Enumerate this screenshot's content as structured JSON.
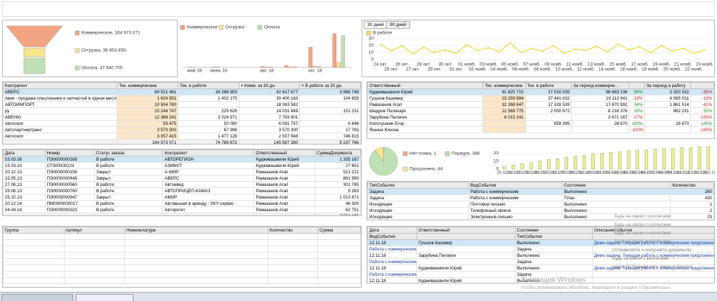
{
  "funnel": {
    "items": [
      {
        "label": "Коммерческое, 164 973 071",
        "color": "#f2a582"
      },
      {
        "label": "Отгрузка, 36 853 455",
        "color": "#f8e58c"
      },
      {
        "label": "Оплата, 37 940 700",
        "color": "#bfe0b4"
      }
    ]
  },
  "sales_chart": {
    "type": "bar",
    "categories": [
      "май 18",
      "июнь 18",
      null,
      "авг. 18",
      null,
      "окт. 18",
      null
    ],
    "series": [
      {
        "name": "Коммерческое",
        "color": "#f2a582",
        "values": [
          0.4,
          0.5,
          0,
          1.5,
          3,
          33,
          55
        ]
      },
      {
        "name": "Отгрузка",
        "color": "#f8e58c",
        "values": [
          0,
          0.3,
          0,
          1,
          1,
          2,
          8
        ]
      },
      {
        "name": "Оплата",
        "color": "#bfe0b4",
        "values": [
          0,
          0,
          0,
          0.5,
          1,
          2,
          52
        ]
      }
    ]
  },
  "activity_chart": {
    "type": "line",
    "tabs": [
      "30 дней",
      "90 дней"
    ],
    "categories": [
      "24 окт.",
      "25 окт.",
      "26 окт.",
      "27 окт.",
      "28 окт.",
      "29 окт.",
      "30 окт.",
      "31 окт.",
      "01 нояб.",
      "02 нояб.",
      "03 нояб.",
      "04 нояб.",
      "05 нояб.",
      "06 нояб.",
      "07 нояб.",
      "08 нояб.",
      "09 нояб.",
      "10 нояб.",
      "11 нояб.",
      "12 нояб.",
      "13 нояб.",
      "14 нояб.",
      "15 нояб.",
      "16 нояб.",
      "17 нояб.",
      "18 нояб.",
      "19 нояб.",
      "20 нояб.",
      "21 нояб.",
      "22 нояб.",
      "23 нояб."
    ],
    "series": [
      {
        "name": "В работе",
        "color": "#f3dc5a",
        "values": [
          22,
          12,
          20,
          8,
          18,
          10,
          14,
          9,
          21,
          13,
          17,
          11,
          24,
          10,
          16,
          12,
          20,
          9,
          15,
          13,
          19,
          11,
          22,
          14,
          18,
          10,
          20,
          12,
          16,
          9,
          14
        ]
      }
    ],
    "ylim": [
      0,
      30
    ],
    "yticks": [
      0,
      10,
      20,
      30
    ]
  },
  "counterparties": {
    "columns": [
      "Контрагент",
      "Тек. коммерческие",
      "Тек. в работе",
      "+ Комм. за 30 дн.",
      "+ В работе за 30 дн."
    ],
    "rows": [
      [
        "АВЕРС",
        "69 521 481",
        "34 288 953",
        "42 617 677",
        "3 986 748"
      ],
      [
        "Авик - продажа спецтехники и запчастей в одном месте",
        "1 624 931",
        "1 402 175",
        "30 400 163",
        "104 658"
      ],
      [
        "АВТОИМПОРТ",
        "10 504 780",
        null,
        "18 063 582",
        null
      ],
      [
        "ру",
        "15 244 747",
        "229 626",
        "14 031 849",
        "151 231"
      ],
      [
        "АВЕНЮ",
        "12 366 241",
        "3 024 971",
        "7 793 801",
        null
      ],
      [
        "Автоскоп",
        "55 475",
        "50 090",
        "6 091 757",
        "6 646"
      ],
      [
        "Автопартнертранс",
        "3 570 300",
        "67 998",
        "3 570 300",
        "17 783"
      ],
      [
        "Автоскоп",
        "3 057 415",
        "1 477 128",
        "2 557 948",
        "746 815"
      ]
    ],
    "totals": [
      null,
      "164 973 071",
      "74 789 672",
      "145 587 380",
      "9 237 766"
    ]
  },
  "responsible": {
    "columns": [
      "Ответственный",
      "Тек. коммерческие",
      "Тек. в работе",
      "За период коммерче...",
      null,
      "За период в работу",
      null
    ],
    "rows": [
      [
        "Кудживашвили Юрий",
        "91 825 715",
        "17 010 035",
        "96 683 236",
        "94%",
        "2 320 322",
        "-35%"
      ],
      [
        "Гуськов Казимир",
        "23 293 694",
        "37 441 032",
        "19 113 941",
        "-19%",
        "4 065 031",
        "-13%"
      ],
      [
        "Рамазанов Агап",
        "32 268 647",
        "17 328 539",
        "17 870 992",
        "34%",
        "1 861 514",
        "-41%"
      ],
      [
        "Шедров Поликарп",
        "11 569 775",
        "2 050 672",
        "8 216 376",
        "55%",
        "962 231",
        "53%"
      ],
      [
        "Зарубина Пелагея",
        "6 015 241",
        null,
        "3 671 167",
        "-17%",
        null,
        "-100%"
      ],
      [
        "Колотушкин Егор",
        null,
        "959 395",
        "28 670",
        "100%",
        "28 670",
        "100%"
      ],
      [
        "Яшина Юнона",
        null,
        null,
        null,
        "-100%",
        null,
        "-100%"
      ]
    ]
  },
  "orders": {
    "columns": [
      "Дата",
      "Номер",
      "Статус заказа",
      "Контрагент",
      "Ответственный",
      "СуммаДокумента"
    ],
    "rows": [
      [
        "03.03.08",
        "ПЭ0000000168",
        "В работе",
        "АВТОРЕГИОН",
        "Кудживашвили Юрий",
        "1 335 167"
      ],
      [
        "15.03.10",
        "СТ000000223",
        "В работе",
        "АЗИМУТ",
        "Кудживашвили Юрий",
        "27 651"
      ],
      [
        "20.12.13",
        "ПЭ0000000158",
        "Закрыт",
        "А-МИР",
        "Рамазанов Агап",
        "521 221"
      ],
      [
        "22.05.13",
        "ПЭ0000000445",
        "Закрыт",
        "АВЕРС",
        "Рамазанов Агап",
        "861 990"
      ],
      [
        "27.06.13",
        "ПЭ0000000560",
        "В работе",
        "Автоевед",
        "Рамазанов Агап",
        "301 785"
      ],
      [
        "29.08.13",
        "ПЭ0000000760",
        "В работе",
        "АВТОПРИЦЕП-КАМАЗ",
        "Рамазанов Агап",
        "9 393"
      ],
      [
        "25.10.13",
        "ПЭ0000000947",
        "Закрыт",
        "АМИР",
        "Рамазанов Агап",
        "1 013 871"
      ],
      [
        "20.12.14",
        "ПМ0000000017",
        "В работе",
        "Автовышки в аренду - SKY-сервис",
        "Рамазанов Агап",
        "48 300"
      ],
      [
        "04.04.14",
        "ПЭ0000000323",
        "В работе",
        "Авторитет",
        "Рамазанов Агап",
        "62 751"
      ]
    ],
    "totals": [
      null,
      null,
      null,
      null,
      null,
      "7 556 195"
    ]
  },
  "status_pie": {
    "type": "pie",
    "series": [
      {
        "name": "Нет плана, 1",
        "color": "#f2a582",
        "value": 1
      },
      {
        "name": "Порядок, 386",
        "color": "#bfe0b4",
        "value": 386
      },
      {
        "name": "Просрочено, 44",
        "color": "#f8e58c",
        "value": 44
      }
    ]
  },
  "deadline_chart": {
    "type": "bar",
    "color": "#eef0a0",
    "categories": [
      "20.11.18",
      "21.11.18",
      "22.11.18",
      "23.11.18",
      "24.11.18",
      "25.11.18",
      "26.11.18",
      "27.11.18",
      "28.11.18",
      "29.11.18",
      "30.11.18",
      "01.12.18",
      "02.12.18",
      "03.12.18",
      "04.12.18",
      "05.12.18",
      "06.12.18",
      "07.12.18",
      "08.12.18",
      "09.12.18",
      "10.12.18",
      "11.12.18",
      "12.12.18",
      "13.12.18"
    ],
    "values": [
      3,
      5,
      7,
      8,
      10,
      12,
      13,
      15,
      16,
      17,
      19,
      20,
      21,
      22,
      23,
      24,
      24,
      25,
      26,
      26,
      27,
      27,
      28,
      28
    ],
    "ylim": [
      0,
      30
    ],
    "yticks": [
      0,
      10,
      20
    ]
  },
  "event_types": {
    "columns": [
      "ТипСобытия",
      "ВидСобытия",
      "Состояние",
      "Количество"
    ],
    "rows": [
      [
        "Задача",
        "Работа с коммерческим",
        "Выполнено",
        "260"
      ],
      [
        "Задача",
        "Работа с коммерческим",
        "План",
        "430"
      ],
      [
        "Исходящее",
        "Почтовое письмо",
        "Выполнено",
        "1"
      ],
      [
        "Исходящее",
        "Телефонный звонок",
        "Выполнено",
        "2"
      ],
      [
        "Исходящее",
        "Электронное письмо",
        "Выполнено",
        "23"
      ]
    ]
  },
  "goods": {
    "columns": [
      "Группа",
      "Артикул",
      "Номенклатура",
      "Количество",
      "Сумма"
    ]
  },
  "events": {
    "columns": [
      "Дата",
      "Ответственный",
      "Состояние",
      "ОписаниеСобытия"
    ],
    "subcolumns": [
      "ВидСобытия",
      "ТипСобытия"
    ],
    "rows": [
      [
        "12.11.18",
        "Гуськов Казимир",
        "Выполнено",
        "Демо-задача. Текущая работа с коммерческим предложением",
        "Работа с коммерческим",
        "Задача"
      ],
      [
        "12.11.18",
        "Зарубина Пелагея",
        "Выполнено",
        "Демо-задача. Текущая работа с коммерческим предложением",
        "Работа с коммерческим",
        "Задача"
      ],
      [
        "12.11.18",
        "Кудживашвили Юрий",
        "Выполнено",
        "Демо-задача. Текущая работа с коммерческим предложением",
        "Работа с коммерческим",
        "Задача"
      ],
      [
        "12.11.18",
        "Кудживашвили Юрий",
        "Выполнено",
        null,
        null,
        null
      ]
    ]
  },
  "notifications": [
    "Будь на связи с коллегами",
    "Будь на связи с коллегами",
    "Будь на связи с коллегами",
    "Будь на связи с коллегами",
    "Отправляйте и получайте документы",
    "Будь на связи с коллегами",
    "через 1С:Бизнес-сеть легко и просто!"
  ],
  "watermark": {
    "title": "Активация Windows",
    "text": "Чтобы активировать Windows, перейдите в раздел «Параметры»."
  }
}
